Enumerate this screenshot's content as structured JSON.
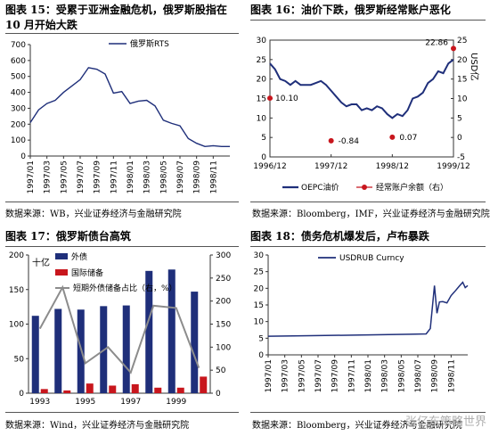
{
  "figures": {
    "fig15": {
      "title": "图表 15：受累于亚洲金融危机，俄罗斯股指在 10 月开始大跌",
      "source": "数据来源：WB，兴业证券经济与金融研究院"
    },
    "fig16": {
      "title": "图表 16：油价下跌，俄罗斯经常账户恶化",
      "source": "数据来源：Bloomberg，IMF，兴业证券经济与金融研究院"
    },
    "fig17": {
      "title": "图表 17：俄罗斯债台高筑",
      "source": "数据来源：Wind，兴业证券经济与金融研究院"
    },
    "fig18": {
      "title": "图表 18：债务危机爆发后，卢布暴跌",
      "source": "数据来源：Bloomberg，兴业证券经济与金融研究院"
    }
  },
  "watermark": "张亿东策略世界",
  "colors": {
    "navy": "#1f2f7a",
    "red": "#c8161d",
    "gray": "#8c8c8c",
    "rule": "#555555"
  },
  "chart_data": [
    {
      "id": "fig15",
      "type": "line",
      "legend": [
        "俄罗斯RTS"
      ],
      "legend_position": "top",
      "ylim": [
        0,
        700
      ],
      "yticks": [
        0,
        100,
        200,
        300,
        400,
        500,
        600,
        700
      ],
      "xticks": [
        "1997/01",
        "1997/03",
        "1997/05",
        "1997/07",
        "1997/09",
        "1997/11",
        "1998/01",
        "1998/03",
        "1998/05",
        "1998/07",
        "1998/09",
        "1998/11"
      ],
      "x_start": "1997/01",
      "x_end": "1999/01",
      "series": [
        {
          "name": "俄罗斯RTS",
          "color": "#1f2f7a",
          "points": [
            [
              "1997/01",
              210
            ],
            [
              "1997/02",
              290
            ],
            [
              "1997/03",
              330
            ],
            [
              "1997/04",
              350
            ],
            [
              "1997/05",
              400
            ],
            [
              "1997/06",
              440
            ],
            [
              "1997/07",
              480
            ],
            [
              "1997/08",
              555
            ],
            [
              "1997/09",
              545
            ],
            [
              "1997/10",
              515
            ],
            [
              "1997/11",
              395
            ],
            [
              "1997/12",
              405
            ],
            [
              "1998/01",
              330
            ],
            [
              "1998/02",
              345
            ],
            [
              "1998/03",
              350
            ],
            [
              "1998/04",
              315
            ],
            [
              "1998/05",
              225
            ],
            [
              "1998/06",
              205
            ],
            [
              "1998/07",
              190
            ],
            [
              "1998/08",
              110
            ],
            [
              "1998/09",
              80
            ],
            [
              "1998/10",
              60
            ],
            [
              "1998/11",
              65
            ],
            [
              "1998/12",
              60
            ],
            [
              "1999/01",
              60
            ]
          ]
        }
      ]
    },
    {
      "id": "fig16",
      "type": "line",
      "legend": [
        "OEPC油价",
        "经常账户余额（右）"
      ],
      "legend_position": "bottom",
      "ylim_left": [
        0,
        30
      ],
      "yticks_left": [
        0,
        5,
        10,
        15,
        20,
        25,
        30
      ],
      "ylim_right": [
        -5,
        25
      ],
      "yticks_right": [
        -5,
        0,
        5,
        10,
        15,
        20,
        25
      ],
      "right_axis_label": "USD亿",
      "xticks": [
        "1996/12",
        "1997/12",
        "1998/12",
        "1999/12"
      ],
      "x_start": "1996/12",
      "x_end": "1999/12",
      "series": [
        {
          "name": "OEPC油价",
          "axis": "left",
          "color": "#1f2f7a",
          "points": [
            [
              "1996/12",
              24
            ],
            [
              "1997/01",
              22.5
            ],
            [
              "1997/02",
              20
            ],
            [
              "1997/03",
              19.5
            ],
            [
              "1997/04",
              18.5
            ],
            [
              "1997/05",
              19.5
            ],
            [
              "1997/06",
              18.5
            ],
            [
              "1997/07",
              18.5
            ],
            [
              "1997/08",
              18.5
            ],
            [
              "1997/09",
              19
            ],
            [
              "1997/10",
              19.5
            ],
            [
              "1997/11",
              18.5
            ],
            [
              "1997/12",
              17
            ],
            [
              "1998/01",
              15.5
            ],
            [
              "1998/02",
              14
            ],
            [
              "1998/03",
              13
            ],
            [
              "1998/04",
              13.5
            ],
            [
              "1998/05",
              13.5
            ],
            [
              "1998/06",
              12
            ],
            [
              "1998/07",
              12.5
            ],
            [
              "1998/08",
              12
            ],
            [
              "1998/09",
              13
            ],
            [
              "1998/10",
              12.5
            ],
            [
              "1998/11",
              11
            ],
            [
              "1998/12",
              10
            ],
            [
              "1999/01",
              11
            ],
            [
              "1999/02",
              10.5
            ],
            [
              "1999/03",
              12
            ],
            [
              "1999/04",
              15
            ],
            [
              "1999/05",
              15.5
            ],
            [
              "1999/06",
              16.5
            ],
            [
              "1999/07",
              19
            ],
            [
              "1999/08",
              20
            ],
            [
              "1999/09",
              22
            ],
            [
              "1999/10",
              21.5
            ],
            [
              "1999/11",
              24
            ],
            [
              "1999/12",
              25
            ]
          ]
        },
        {
          "name": "经常账户余额（右）",
          "axis": "right",
          "color": "#c8161d",
          "points": [
            [
              "1996/12",
              10.1
            ],
            [
              "1997/12",
              -0.84
            ],
            [
              "1998/12",
              0.07
            ],
            [
              "1999/12",
              22.86
            ]
          ],
          "labels": [
            "10.10",
            "-0.84",
            "0.07",
            "22.86"
          ]
        }
      ]
    },
    {
      "id": "fig17",
      "type": "bar",
      "categories": [
        "1993",
        "1994",
        "1995",
        "1996",
        "1997",
        "1998",
        "1999",
        "2000"
      ],
      "visible_category_labels": [
        "1993",
        "1995",
        "1997",
        "1999"
      ],
      "left_axis_label": "十亿",
      "ylim_left": [
        0,
        200
      ],
      "yticks_left": [
        0,
        50,
        100,
        150,
        200
      ],
      "ylim_right": [
        0,
        300
      ],
      "yticks_right": [
        0,
        50,
        100,
        150,
        200,
        250,
        300
      ],
      "legend_position": "top-left",
      "series": [
        {
          "name": "外债",
          "axis": "left",
          "type": "bar",
          "color": "#1f2f7a",
          "values": [
            112,
            122,
            121,
            126,
            127,
            177,
            179,
            147
          ]
        },
        {
          "name": "国际储备",
          "axis": "left",
          "type": "bar",
          "color": "#c8161d",
          "values": [
            6,
            4,
            14,
            11,
            13,
            8,
            8,
            24
          ]
        },
        {
          "name": "短期外债储备占比（右，%）",
          "axis": "right",
          "type": "line",
          "color": "#8c8c8c",
          "values": [
            140,
            230,
            65,
            100,
            45,
            190,
            185,
            55
          ]
        }
      ]
    },
    {
      "id": "fig18",
      "type": "line",
      "legend": [
        "USDRUB Curncy"
      ],
      "legend_position": "top",
      "ylim": [
        0,
        30
      ],
      "yticks": [
        0,
        5,
        10,
        15,
        20,
        25,
        30
      ],
      "xticks": [
        "1997/01",
        "1997/03",
        "1997/05",
        "1997/07",
        "1997/09",
        "1997/11",
        "1998/01",
        "1998/03",
        "1998/05",
        "1998/07",
        "1998/09",
        "1998/11"
      ],
      "x_start": "1997/01",
      "x_end": "1999/01",
      "series": [
        {
          "name": "USDRUB Curncy",
          "color": "#1f2f7a",
          "points": [
            [
              "1997/01",
              5.6
            ],
            [
              "1997/06",
              5.75
            ],
            [
              "1997/12",
              5.96
            ],
            [
              "1998/01",
              6.0
            ],
            [
              "1998/06",
              6.2
            ],
            [
              "1998/08",
              6.3
            ],
            [
              "1998/08.5",
              7.9
            ],
            [
              "1998/09",
              20.8
            ],
            [
              "1998/09.3",
              12.5
            ],
            [
              "1998/09.6",
              15.9
            ],
            [
              "1998/10",
              16.0
            ],
            [
              "1998/10.5",
              15.6
            ],
            [
              "1998/11",
              17.8
            ],
            [
              "1998/11.5",
              19.2
            ],
            [
              "1998/12",
              20.7
            ],
            [
              "1998/12.4",
              21.8
            ],
            [
              "1998/12.7",
              20.2
            ],
            [
              "1999/01",
              20.8
            ]
          ]
        }
      ]
    }
  ]
}
